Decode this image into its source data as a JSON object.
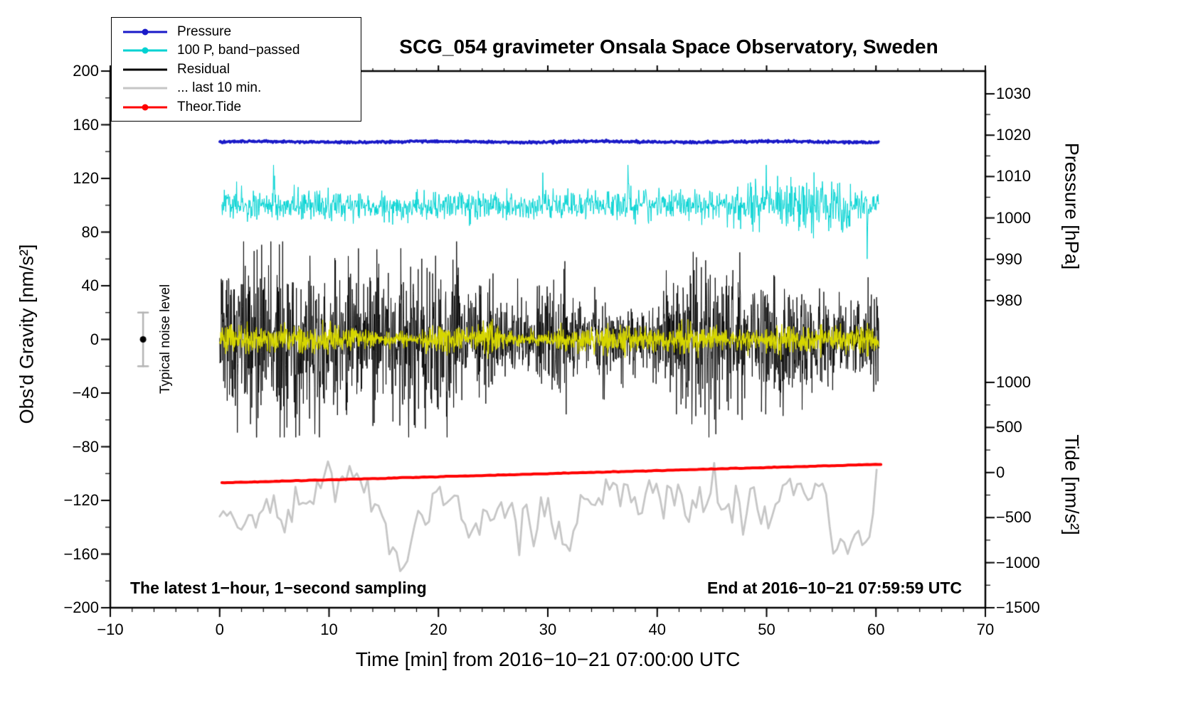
{
  "chart_data": {
    "type": "line",
    "title": "SCG_054 gravimeter Onsala Space Observatory, Sweden",
    "xlabel": "Time [min] from 2016−10−21 07:00:00 UTC",
    "x_range": [
      -10,
      70
    ],
    "x_major_ticks": [
      -10,
      0,
      10,
      20,
      30,
      40,
      50,
      60,
      70
    ],
    "x_minor_step": 2,
    "axes": {
      "left": {
        "label": "Obs'd Gravity [nm/s²]",
        "range": [
          -200,
          200
        ],
        "ticks": [
          200,
          160,
          120,
          80,
          40,
          0,
          -40,
          -80,
          -120,
          -160,
          -200
        ],
        "minor_step": 20
      },
      "right_pressure": {
        "label": "Pressure [hPa]",
        "ticks": [
          1030,
          1020,
          1010,
          1000,
          990,
          980
        ],
        "minor_step": 5
      },
      "right_tide": {
        "label": "Tide [nm/s²]",
        "ticks": [
          1000,
          500,
          0,
          -500,
          -1000,
          -1500
        ],
        "minor_step": 250
      }
    },
    "legend": [
      {
        "label": "Pressure",
        "color": "#1a1ac8",
        "dot": true
      },
      {
        "label": "100 P, band−passed",
        "color": "#00d2d2",
        "dot": true
      },
      {
        "label": "Residual",
        "color": "#000000",
        "dot": false
      },
      {
        "label": "... last 10 min.",
        "color": "#c6c6c6",
        "dot": false
      },
      {
        "label": "Theor.Tide",
        "color": "#ff0000",
        "dot": true
      }
    ],
    "series": [
      {
        "name": "Pressure",
        "axis": "pressure",
        "color": "#1a1ac8",
        "baseline_hPa": 1018.4,
        "noise_hPa": 0.13,
        "x_start": 0,
        "x_end": 60.3,
        "width": 3.5
      },
      {
        "name": "100 P, band−passed",
        "axis": "left",
        "color": "#00d2d2",
        "baseline": 100,
        "amplitude": 6,
        "spike_min": -40,
        "spike_max": 28,
        "x_start": 0.2,
        "x_end": 60.3,
        "width": 1
      },
      {
        "name": "Residual",
        "axis": "left",
        "color": "#000000",
        "baseline": 0,
        "amplitude": 30,
        "peak": 73,
        "x_start": 0,
        "x_end": 60.3,
        "width": 0.9
      },
      {
        "name": "Residual smoothed overlay",
        "axis": "left",
        "color": "#d6d600",
        "baseline": 0,
        "amplitude": 5,
        "x_start": 0,
        "x_end": 60.3,
        "width": 1.3
      },
      {
        "name": "Residual last 10 min.",
        "axis": "left",
        "color": "#c6c6c6",
        "baseline": -129,
        "amplitude": 24,
        "min": -175,
        "max": -78,
        "x_start": 0,
        "x_end": 60.3,
        "width": 2.8
      },
      {
        "name": "Theor.Tide",
        "axis": "tide",
        "color": "#ff0000",
        "tide_start": -115,
        "tide_end": 90,
        "x_start": 0.2,
        "x_end": 60.5,
        "width": 4
      }
    ],
    "noise_marker": {
      "label": "Typical noise level",
      "x": -7,
      "center": 0,
      "half_range": 20
    },
    "annotations": {
      "sampling": "The latest 1−hour, 1−second sampling",
      "end_time": "End at 2016−10−21 07:59:59 UTC"
    }
  }
}
